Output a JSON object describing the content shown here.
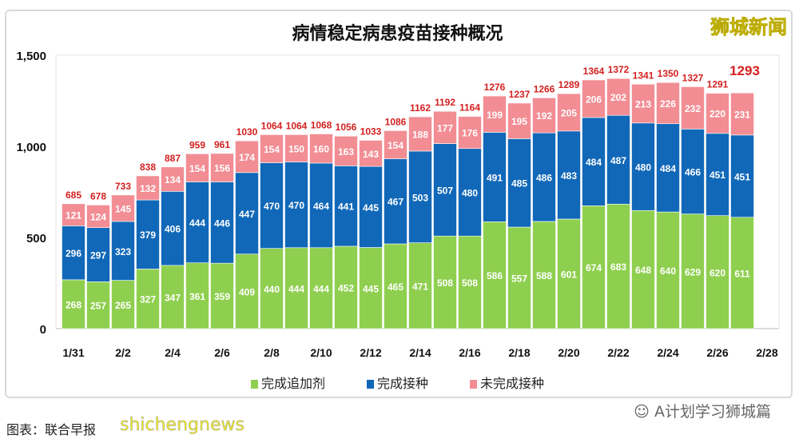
{
  "chart_data": {
    "type": "bar",
    "stacked": true,
    "title": "病情稳定病患疫苗接种概况",
    "categories": [
      "1/31",
      "2/1",
      "2/2",
      "2/3",
      "2/4",
      "2/5",
      "2/6",
      "2/7",
      "2/8",
      "2/9",
      "2/10",
      "2/11",
      "2/12",
      "2/13",
      "2/14",
      "2/15",
      "2/16",
      "2/17",
      "2/18",
      "2/19",
      "2/20",
      "2/21",
      "2/22",
      "2/23",
      "2/24",
      "2/25",
      "2/26",
      "2/27"
    ],
    "x_tick_labels": [
      "1/31",
      "2/2",
      "2/4",
      "2/6",
      "2/8",
      "2/10",
      "2/12",
      "2/14",
      "2/16",
      "2/18",
      "2/20",
      "2/22",
      "2/24",
      "2/26",
      "2/28"
    ],
    "y_ticks": [
      "0",
      "500",
      "1,000",
      "1,500"
    ],
    "ylim": [
      0,
      1500
    ],
    "grid": false,
    "legend_position": "bottom",
    "series": [
      {
        "name": "完成追加剂",
        "color": "#8fcf4f",
        "values": [
          268,
          257,
          265,
          327,
          347,
          361,
          359,
          409,
          440,
          444,
          444,
          452,
          445,
          465,
          471,
          508,
          508,
          586,
          557,
          588,
          601,
          674,
          683,
          648,
          640,
          629,
          620,
          611
        ]
      },
      {
        "name": "完成接种",
        "color": "#1168b8",
        "values": [
          296,
          297,
          323,
          379,
          406,
          444,
          446,
          447,
          470,
          470,
          464,
          441,
          445,
          467,
          503,
          507,
          480,
          491,
          485,
          486,
          483,
          484,
          487,
          480,
          484,
          466,
          451,
          451
        ]
      },
      {
        "name": "未完成接种",
        "color": "#f28d94",
        "values": [
          121,
          124,
          145,
          132,
          134,
          154,
          156,
          174,
          154,
          150,
          160,
          163,
          143,
          154,
          188,
          177,
          176,
          199,
          195,
          192,
          205,
          206,
          202,
          213,
          226,
          232,
          220,
          231
        ]
      }
    ],
    "totals": [
      685,
      678,
      733,
      838,
      887,
      959,
      961,
      1030,
      1064,
      1064,
      1068,
      1056,
      1033,
      1086,
      1162,
      1192,
      1164,
      1276,
      1237,
      1266,
      1289,
      1364,
      1372,
      1341,
      1350,
      1327,
      1291,
      1293
    ],
    "total_color": "#d42020"
  },
  "logo": "狮城新闻",
  "source": "图表：联合早报",
  "watermark": "shichengnews",
  "wechat": "A计划学习狮城篇"
}
